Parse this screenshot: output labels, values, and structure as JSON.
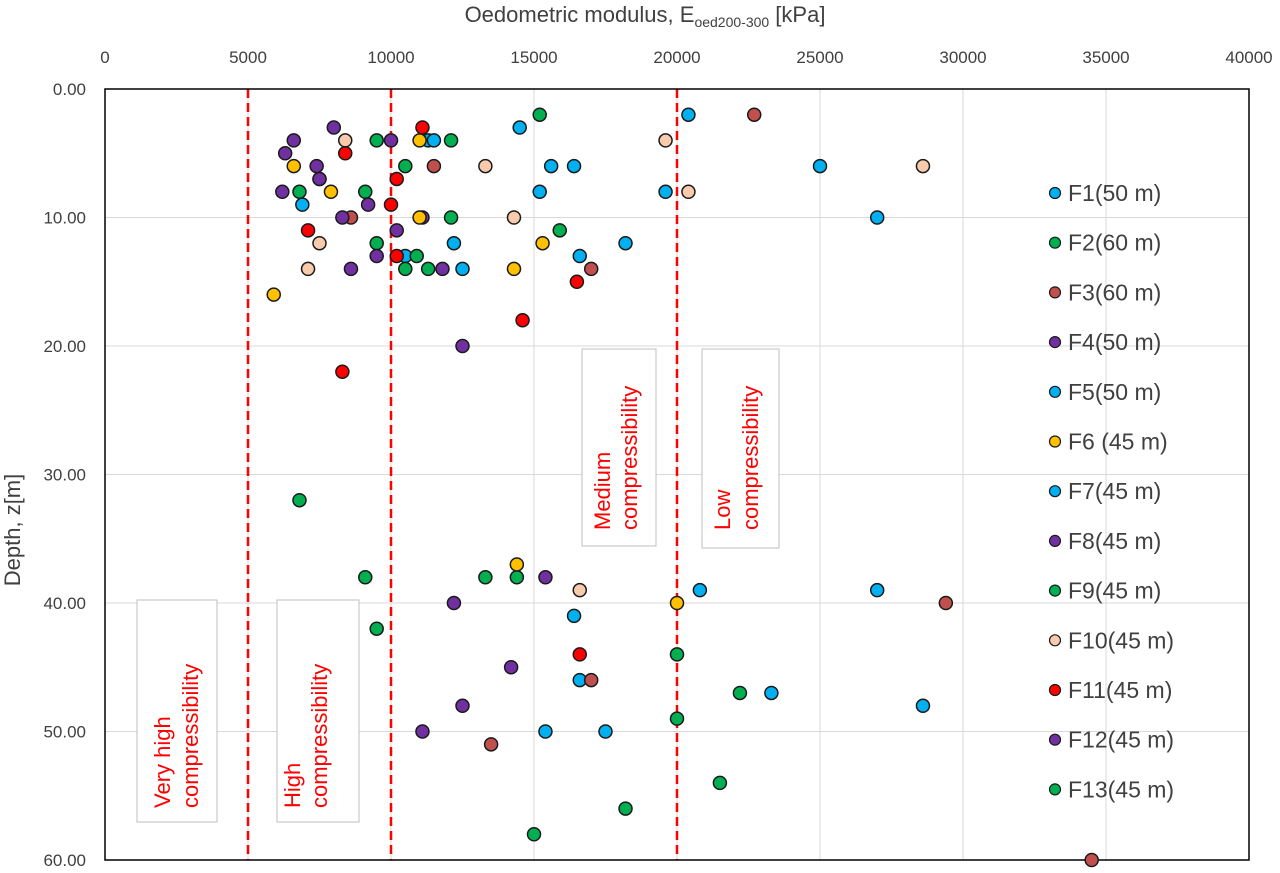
{
  "chart_data": {
    "type": "scatter",
    "xlabel": "Oedometric modulus, E",
    "xlabel_subscript": "oed200-300",
    "xlabel_unit": " [kPa]",
    "ylabel": "Depth, z[m]",
    "xlim": [
      0,
      40000
    ],
    "ylim": [
      0,
      60
    ],
    "y_inverted": true,
    "x_axis_position": "top",
    "grid": true,
    "legend_placement": "right",
    "x_ticks": [
      "0",
      "5000",
      "10000",
      "15000",
      "20000",
      "25000",
      "30000",
      "35000",
      "40000"
    ],
    "y_ticks": [
      "0.00",
      "10.00",
      "20.00",
      "30.00",
      "40.00",
      "50.00",
      "60.00"
    ],
    "reference_lines": [
      {
        "x": 5000,
        "color": "#FF0000",
        "style": "dashed"
      },
      {
        "x": 10000,
        "color": "#FF0000",
        "style": "dashed"
      },
      {
        "x": 20000,
        "color": "#FF0000",
        "style": "dashed"
      }
    ],
    "annotations": [
      {
        "line1": "Very high",
        "line2": "compressibility"
      },
      {
        "line1": "High",
        "line2": "compressibility"
      },
      {
        "line1": "Medium",
        "line2": "compressibility"
      },
      {
        "line1": "Low",
        "line2": "compressibility"
      }
    ],
    "series": [
      {
        "name": "F1(50 m)",
        "color": "#00B0F0",
        "points": [
          [
            20400,
            2
          ],
          [
            14500,
            3
          ],
          [
            11300,
            4
          ],
          [
            11500,
            4
          ],
          [
            15600,
            6
          ],
          [
            16400,
            6
          ],
          [
            25000,
            6
          ],
          [
            15200,
            8
          ],
          [
            19600,
            8
          ],
          [
            6900,
            9
          ],
          [
            27000,
            10
          ],
          [
            12200,
            12
          ],
          [
            18200,
            12
          ],
          [
            10500,
            13
          ],
          [
            16600,
            13
          ],
          [
            12500,
            14
          ],
          [
            20800,
            39
          ],
          [
            27000,
            39
          ],
          [
            16400,
            41
          ],
          [
            16600,
            46
          ],
          [
            23300,
            47
          ],
          [
            28600,
            48
          ],
          [
            15400,
            50
          ],
          [
            17500,
            50
          ]
        ]
      },
      {
        "name": "F2(60 m)",
        "color": "#00B050",
        "points": [
          [
            15200,
            2
          ],
          [
            9500,
            4
          ],
          [
            12100,
            4
          ],
          [
            10500,
            6
          ],
          [
            6800,
            8
          ],
          [
            9100,
            8
          ],
          [
            12100,
            10
          ],
          [
            15900,
            11
          ],
          [
            9500,
            12
          ],
          [
            10900,
            13
          ],
          [
            10500,
            14
          ],
          [
            11300,
            14
          ],
          [
            6800,
            32
          ],
          [
            9100,
            38
          ],
          [
            13300,
            38
          ],
          [
            14400,
            38
          ],
          [
            9500,
            42
          ],
          [
            20000,
            44
          ],
          [
            22200,
            47
          ],
          [
            20000,
            49
          ],
          [
            21500,
            54
          ],
          [
            18200,
            56
          ],
          [
            15000,
            58
          ]
        ]
      },
      {
        "name": "F3(60 m)",
        "color": "#C0504D",
        "points": [
          [
            22700,
            2
          ],
          [
            11500,
            6
          ],
          [
            8600,
            10
          ],
          [
            17000,
            14
          ],
          [
            29400,
            40
          ],
          [
            17000,
            46
          ],
          [
            13500,
            51
          ],
          [
            34500,
            60
          ]
        ]
      },
      {
        "name": "F4(50 m)",
        "color": "#7030A0",
        "points": [
          [
            8000,
            3
          ],
          [
            6600,
            4
          ],
          [
            10000,
            4
          ],
          [
            6300,
            5
          ],
          [
            7400,
            6
          ],
          [
            7500,
            7
          ],
          [
            7500,
            7
          ],
          [
            6200,
            8
          ],
          [
            9200,
            9
          ],
          [
            8300,
            10
          ],
          [
            11100,
            10
          ],
          [
            10200,
            11
          ],
          [
            9500,
            13
          ],
          [
            8600,
            14
          ],
          [
            11800,
            14
          ],
          [
            12500,
            20
          ],
          [
            15400,
            38
          ],
          [
            12200,
            40
          ],
          [
            14200,
            45
          ],
          [
            12500,
            48
          ],
          [
            11100,
            50
          ]
        ]
      },
      {
        "name": "F5(50 m)",
        "color": "#00B0F0",
        "points": []
      },
      {
        "name": "F6 (45 m)",
        "color": "#FFC000",
        "points": [
          [
            11000,
            4
          ],
          [
            6600,
            6
          ],
          [
            7900,
            8
          ],
          [
            11000,
            10
          ],
          [
            15300,
            12
          ],
          [
            14300,
            14
          ],
          [
            5900,
            16
          ],
          [
            14400,
            37
          ],
          [
            20000,
            40
          ]
        ]
      },
      {
        "name": "F7(45 m)",
        "color": "#00B0F0",
        "points": []
      },
      {
        "name": "F8(45 m)",
        "color": "#7030A0",
        "points": []
      },
      {
        "name": "F9(45 m)",
        "color": "#00B050",
        "points": []
      },
      {
        "name": "F10(45 m)",
        "color": "#F8CBAD",
        "points": [
          [
            8400,
            4
          ],
          [
            19600,
            4
          ],
          [
            13300,
            6
          ],
          [
            28600,
            6
          ],
          [
            20400,
            8
          ],
          [
            14300,
            10
          ],
          [
            7500,
            12
          ],
          [
            7100,
            14
          ],
          [
            16600,
            39
          ]
        ]
      },
      {
        "name": "F11(45 m)",
        "color": "#FF0000",
        "points": [
          [
            11100,
            3
          ],
          [
            8400,
            5
          ],
          [
            10200,
            7
          ],
          [
            10000,
            9
          ],
          [
            7100,
            11
          ],
          [
            10200,
            13
          ],
          [
            16500,
            15
          ],
          [
            14600,
            18
          ],
          [
            8300,
            22
          ],
          [
            16600,
            44
          ]
        ]
      },
      {
        "name": "F12(45 m)",
        "color": "#7030A0",
        "points": []
      },
      {
        "name": "F13(45 m)",
        "color": "#00B050",
        "points": []
      }
    ]
  }
}
